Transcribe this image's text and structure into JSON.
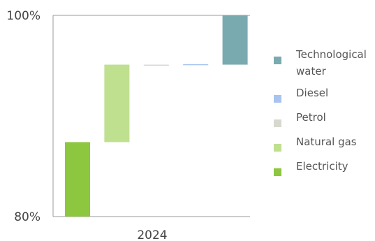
{
  "chart_data": {
    "type": "bar",
    "subtype": "stacked-waterfall",
    "categories": [
      "2024"
    ],
    "ylim": [
      80,
      100
    ],
    "ytick_labels": [
      "80%",
      "100%"
    ],
    "series": [
      {
        "name": "Electricity",
        "color": "#8dc63f",
        "start": 80,
        "end": 87.4
      },
      {
        "name": "Natural gas",
        "color": "#bfe08f",
        "start": 87.4,
        "end": 95.1
      },
      {
        "name": "Petrol",
        "color": "#d7d9cf",
        "start": 95.05,
        "end": 95.1
      },
      {
        "name": "Diesel",
        "color": "#a8c4ee",
        "start": 95.1,
        "end": 95.15
      },
      {
        "name": "Technological water",
        "color": "#79aab0",
        "start": 95.1,
        "end": 100
      }
    ],
    "legend": {
      "position": "right",
      "items": [
        {
          "label": "Technological water",
          "color": "#79aab0"
        },
        {
          "label": "Diesel",
          "color": "#a8c4ee"
        },
        {
          "label": "Petrol",
          "color": "#d7d9cf"
        },
        {
          "label": "Natural gas",
          "color": "#bfe08f"
        },
        {
          "label": "Electricity",
          "color": "#8dc63f"
        }
      ]
    },
    "grid": false
  }
}
